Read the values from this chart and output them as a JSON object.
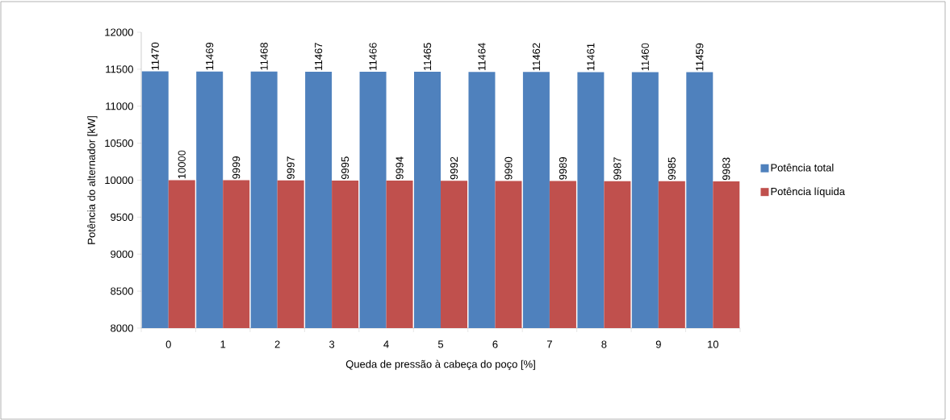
{
  "chart_data": {
    "type": "bar",
    "xlabel": "Queda de pressão à cabeça do  poço [%]",
    "ylabel": "Potência do alternador [kW]",
    "categories": [
      "0",
      "1",
      "2",
      "3",
      "4",
      "5",
      "6",
      "7",
      "8",
      "9",
      "10"
    ],
    "series": [
      {
        "name": "Potência total",
        "color": "#4f81bd",
        "values": [
          11470,
          11469,
          11468,
          11467,
          11466,
          11465,
          11464,
          11462,
          11461,
          11460,
          11459
        ]
      },
      {
        "name": "Potência líquida",
        "color": "#c0504d",
        "values": [
          10000,
          9999,
          9997,
          9995,
          9994,
          9992,
          9990,
          9989,
          9987,
          9985,
          9983
        ]
      }
    ],
    "ylim": [
      8000,
      12000
    ],
    "yticks": [
      8000,
      8500,
      9000,
      9500,
      10000,
      10500,
      11000,
      11500,
      12000
    ],
    "data_labels": true,
    "grid": false,
    "legend": "right"
  }
}
